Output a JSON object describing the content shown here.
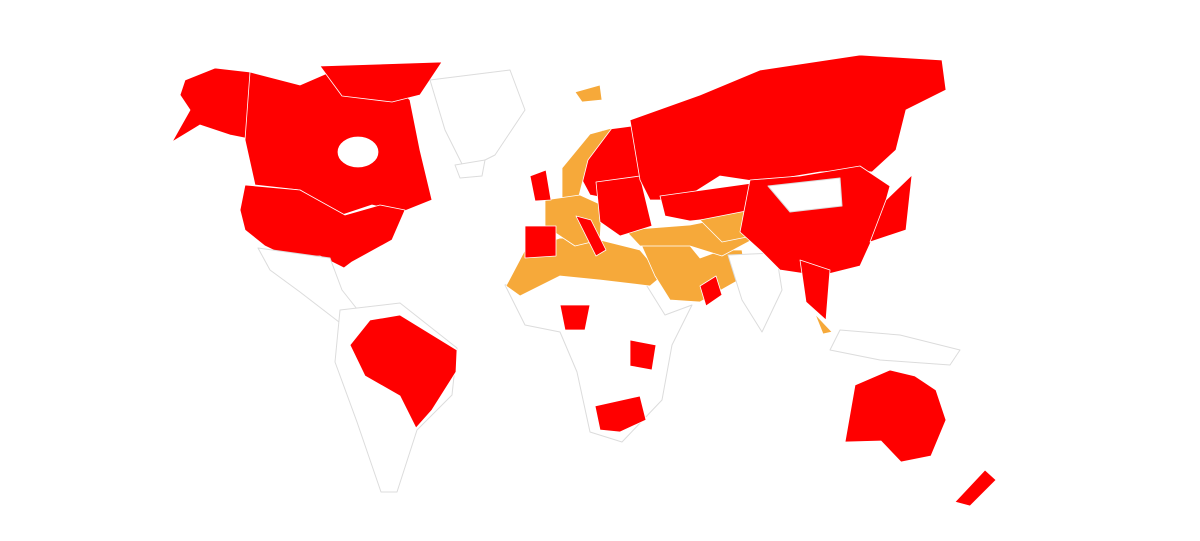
{
  "map": {
    "type": "choropleth",
    "projection": "world",
    "legend": null,
    "colors": {
      "red": "#ff0000",
      "orange": "#f6a93a",
      "none": "#ffffff",
      "border": "#dcdcdc"
    },
    "regions": [
      {
        "id": "alaska",
        "category": "red"
      },
      {
        "id": "canada",
        "category": "red"
      },
      {
        "id": "canada-arctic",
        "category": "red"
      },
      {
        "id": "usa",
        "category": "red"
      },
      {
        "id": "greenland",
        "category": "none"
      },
      {
        "id": "central-america",
        "category": "none"
      },
      {
        "id": "south-america",
        "category": "none"
      },
      {
        "id": "brazil",
        "category": "red"
      },
      {
        "id": "africa",
        "category": "none"
      },
      {
        "id": "north-africa",
        "category": "orange"
      },
      {
        "id": "nigeria",
        "category": "red"
      },
      {
        "id": "tanzania",
        "category": "red"
      },
      {
        "id": "south-africa",
        "category": "red"
      },
      {
        "id": "middle-east",
        "category": "orange"
      },
      {
        "id": "turkey-iran",
        "category": "orange"
      },
      {
        "id": "oman",
        "category": "red"
      },
      {
        "id": "scandinavia",
        "category": "red"
      },
      {
        "id": "norway",
        "category": "orange"
      },
      {
        "id": "western-europe",
        "category": "orange"
      },
      {
        "id": "spain",
        "category": "red"
      },
      {
        "id": "uk",
        "category": "red"
      },
      {
        "id": "eastern-europe",
        "category": "red"
      },
      {
        "id": "italy",
        "category": "red"
      },
      {
        "id": "russia",
        "category": "red"
      },
      {
        "id": "kazakhstan",
        "category": "red"
      },
      {
        "id": "central-asia",
        "category": "orange"
      },
      {
        "id": "india",
        "category": "none"
      },
      {
        "id": "china",
        "category": "red"
      },
      {
        "id": "mongolia",
        "category": "none"
      },
      {
        "id": "southeast-asia",
        "category": "red"
      },
      {
        "id": "malaysia",
        "category": "orange"
      },
      {
        "id": "indonesia",
        "category": "none"
      },
      {
        "id": "japan",
        "category": "red"
      },
      {
        "id": "australia",
        "category": "red"
      },
      {
        "id": "new-zealand",
        "category": "red"
      },
      {
        "id": "svalbard",
        "category": "orange"
      },
      {
        "id": "iceland",
        "category": "none"
      }
    ]
  }
}
